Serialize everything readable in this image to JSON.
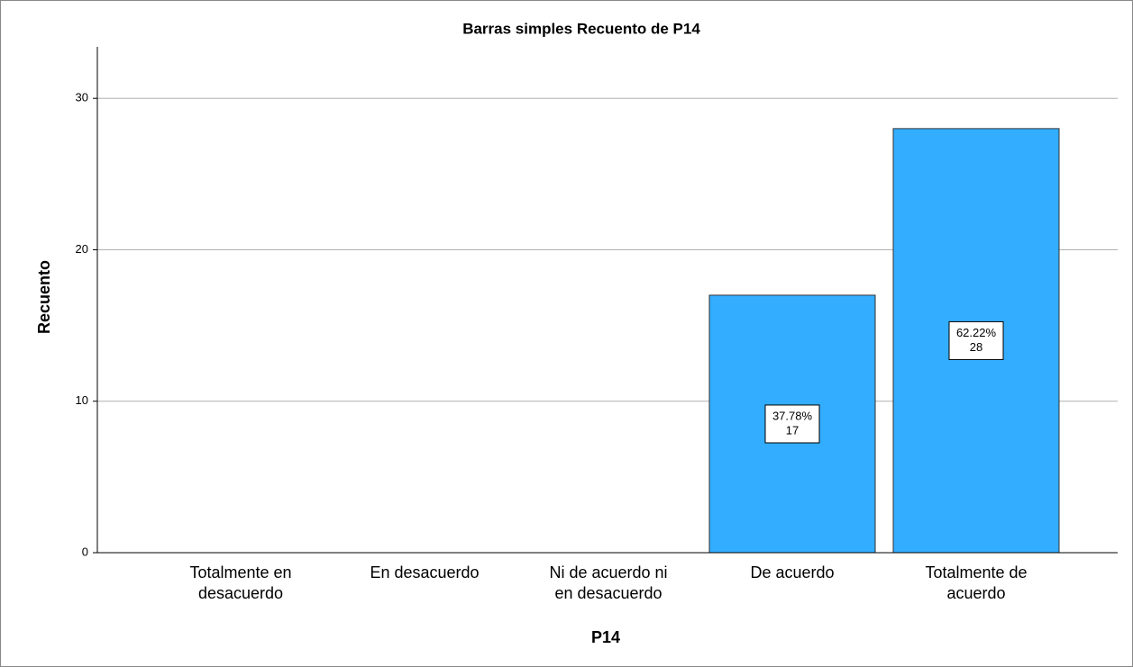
{
  "chart_data": {
    "type": "bar",
    "title": "Barras simples Recuento de P14",
    "x_label": "P14",
    "y_label": "Recuento",
    "categories": [
      "Totalmente en desacuerdo",
      "En desacuerdo",
      "Ni de acuerdo ni en desacuerdo",
      "De acuerdo",
      "Totalmente de acuerdo"
    ],
    "values": [
      0,
      0,
      0,
      17,
      28
    ],
    "percent_labels": [
      null,
      null,
      null,
      "37.78%",
      "62.22%"
    ],
    "color": "#33adff",
    "ylim": [
      0,
      33.4
    ],
    "yticks": [
      0,
      10,
      20,
      30
    ],
    "grid": true
  }
}
